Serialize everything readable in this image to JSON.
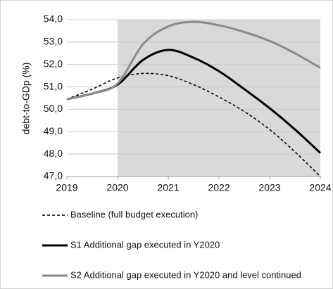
{
  "chart_data": {
    "type": "line",
    "ylabel": "debt-to-GDp (%)",
    "x": [
      2019,
      2019.5,
      2020,
      2020.5,
      2021,
      2021.5,
      2022,
      2022.5,
      2023,
      2023.5,
      2024
    ],
    "xlim": [
      2019,
      2024
    ],
    "xticks": [
      2019,
      2020,
      2021,
      2022,
      2023,
      2024
    ],
    "ylim": [
      47,
      54
    ],
    "yticks": [
      {
        "value": 47,
        "label": "47,0"
      },
      {
        "value": 48,
        "label": "48,0"
      },
      {
        "value": 49,
        "label": "49,0"
      },
      {
        "value": 50,
        "label": "50,0"
      },
      {
        "value": 51,
        "label": "51,0"
      },
      {
        "value": 52,
        "label": "52,0"
      },
      {
        "value": 53,
        "label": "53,0"
      },
      {
        "value": 54,
        "label": "54,0"
      }
    ],
    "grid": true,
    "shaded_xrange": [
      2020,
      2024
    ],
    "shade_color": "#d9d9d9",
    "legend": "bottom",
    "series": [
      {
        "name": "Baseline (full budget execution)",
        "color": "#000000",
        "dash": true,
        "values": [
          50.45,
          50.9,
          51.4,
          51.6,
          51.5,
          51.1,
          50.55,
          49.9,
          49.1,
          48.1,
          47.0
        ]
      },
      {
        "name": "S1 Additional gap executed in Y2020",
        "color": "#000000",
        "dash": false,
        "values": [
          50.45,
          50.7,
          51.1,
          52.2,
          52.65,
          52.3,
          51.7,
          50.9,
          50.05,
          49.1,
          48.05
        ]
      },
      {
        "name": "S2 Additional gap executed in Y2020 and level continued",
        "color": "#8a8a8a",
        "dash": false,
        "values": [
          50.45,
          50.7,
          51.15,
          52.9,
          53.7,
          53.9,
          53.75,
          53.45,
          53.05,
          52.5,
          51.85
        ]
      }
    ]
  }
}
